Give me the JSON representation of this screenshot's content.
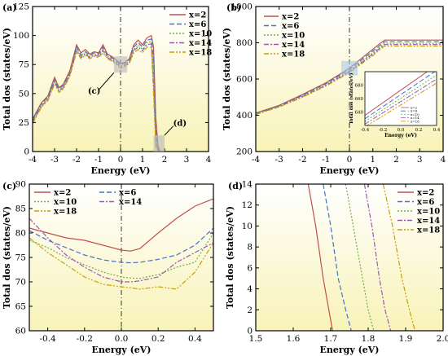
{
  "figure": {
    "legend_labels": [
      "x=2",
      "x=6",
      "x=10",
      "x=14",
      "x=18"
    ],
    "colors": [
      "#c0504d",
      "#4472c4",
      "#70ad47",
      "#9b59b6",
      "#c8a000"
    ]
  },
  "chart_data": [
    {
      "type": "line",
      "panel_label": "(a)",
      "xlabel": "Energy (eV)",
      "ylabel": "Total dos (states/eV)",
      "xlim": [
        -4,
        4
      ],
      "ylim": [
        0,
        125
      ],
      "xticks": [
        -4,
        -3,
        -2,
        -1,
        0,
        1,
        2,
        3,
        4
      ],
      "yticks": [
        0,
        25,
        50,
        75,
        100,
        125
      ],
      "legend_position": "top-right",
      "annotations": [
        "(c)",
        "(d)"
      ],
      "x": [
        -4,
        -3.6,
        -3.3,
        -3.0,
        -2.8,
        -2.6,
        -2.3,
        -2.0,
        -1.8,
        -1.6,
        -1.4,
        -1.2,
        -1.0,
        -0.8,
        -0.6,
        -0.4,
        -0.2,
        0,
        0.2,
        0.4,
        0.6,
        0.8,
        1.0,
        1.2,
        1.4,
        1.5,
        1.6,
        1.7,
        1.8
      ],
      "series": [
        {
          "name": "x=2",
          "values": [
            28,
            42,
            48,
            64,
            55,
            58,
            70,
            92,
            85,
            88,
            84,
            86,
            85,
            92,
            84,
            82,
            79,
            76,
            77,
            80,
            92,
            96,
            92,
            98,
            100,
            90,
            30,
            5,
            0
          ]
        },
        {
          "name": "x=6",
          "values": [
            27,
            41,
            47,
            62,
            54,
            57,
            68,
            90,
            83,
            86,
            83,
            85,
            84,
            90,
            83,
            81,
            78,
            75,
            76,
            79,
            90,
            94,
            90,
            96,
            97,
            80,
            20,
            2,
            0
          ]
        },
        {
          "name": "x=10",
          "values": [
            26,
            40,
            46,
            61,
            53,
            56,
            67,
            88,
            82,
            85,
            82,
            84,
            83,
            88,
            82,
            80,
            77,
            74,
            75,
            78,
            88,
            92,
            88,
            94,
            95,
            70,
            12,
            1,
            0
          ]
        },
        {
          "name": "x=14",
          "values": [
            25,
            39,
            45,
            60,
            52,
            55,
            66,
            87,
            81,
            84,
            81,
            83,
            82,
            87,
            81,
            79,
            76,
            73,
            74,
            77,
            87,
            90,
            87,
            92,
            93,
            60,
            8,
            1,
            0
          ]
        },
        {
          "name": "x=18",
          "values": [
            24,
            38,
            44,
            58,
            51,
            54,
            65,
            86,
            80,
            83,
            80,
            82,
            81,
            85,
            80,
            78,
            75,
            72,
            73,
            76,
            85,
            88,
            85,
            90,
            90,
            50,
            5,
            0,
            0
          ]
        }
      ]
    },
    {
      "type": "line",
      "panel_label": "(b)",
      "xlabel": "Energy (eV)",
      "ylabel": "Total dos (states/eV)",
      "xlim": [
        -4,
        4
      ],
      "ylim": [
        200,
        1000
      ],
      "xticks": [
        -4,
        -3,
        -2,
        -1,
        0,
        1,
        2,
        3,
        4
      ],
      "yticks": [
        200,
        400,
        600,
        800,
        1000
      ],
      "legend_position": "top-left",
      "x": [
        -4,
        -3,
        -2,
        -1,
        0,
        1,
        1.5,
        2,
        3,
        4
      ],
      "series": [
        {
          "name": "x=2",
          "values": [
            412,
            455,
            515,
            580,
            660,
            765,
            815,
            815,
            815,
            815
          ]
        },
        {
          "name": "x=6",
          "values": [
            410,
            452,
            510,
            575,
            652,
            755,
            806,
            806,
            806,
            806
          ]
        },
        {
          "name": "x=10",
          "values": [
            408,
            450,
            506,
            570,
            645,
            745,
            797,
            797,
            797,
            797
          ]
        },
        {
          "name": "x=14",
          "values": [
            406,
            448,
            503,
            566,
            640,
            738,
            790,
            790,
            790,
            790
          ]
        },
        {
          "name": "x=18",
          "values": [
            404,
            446,
            500,
            562,
            635,
            730,
            782,
            782,
            782,
            782
          ]
        }
      ],
      "inset": {
        "xlabel": "Energy (eV)",
        "ylabel": "Total dos (states/eV)",
        "xlim": [
          -0.4,
          0.4
        ],
        "ylim": [
          620,
          700
        ],
        "xticks": [
          -0.4,
          -0.2,
          0.0,
          0.2,
          0.4
        ],
        "yticks": [
          640,
          660,
          680
        ],
        "x": [
          -0.4,
          0.4
        ],
        "series": [
          {
            "name": "x=2",
            "values": [
              635,
              710
            ]
          },
          {
            "name": "x=6",
            "values": [
              630,
              702
            ]
          },
          {
            "name": "x=10",
            "values": [
              626,
              695
            ]
          },
          {
            "name": "x=14",
            "values": [
              622,
              689
            ]
          },
          {
            "name": "x=18",
            "values": [
              618,
              683
            ]
          }
        ]
      }
    },
    {
      "type": "line",
      "panel_label": "(c)",
      "xlabel": "Energy (eV)",
      "ylabel": "Total dos (states/eV)",
      "xlim": [
        -0.5,
        0.5
      ],
      "ylim": [
        60,
        90
      ],
      "xticks": [
        -0.4,
        -0.2,
        0.0,
        0.2,
        0.4
      ],
      "yticks": [
        60,
        65,
        70,
        75,
        80,
        85,
        90
      ],
      "legend_position": "top",
      "x": [
        -0.5,
        -0.4,
        -0.3,
        -0.2,
        -0.1,
        0.0,
        0.05,
        0.1,
        0.2,
        0.3,
        0.4,
        0.5
      ],
      "series": [
        {
          "name": "x=2",
          "values": [
            81,
            80,
            79,
            78.5,
            77.5,
            76.5,
            76.3,
            76.8,
            80,
            83,
            85.5,
            87
          ]
        },
        {
          "name": "x=6",
          "values": [
            80.5,
            78.5,
            77,
            75.5,
            74.5,
            74,
            73.9,
            74,
            74.6,
            75.5,
            77.5,
            81
          ]
        },
        {
          "name": "x=10",
          "values": [
            78.5,
            77,
            75,
            73.5,
            72,
            71,
            70.8,
            70.7,
            71.5,
            73,
            74,
            80
          ]
        },
        {
          "name": "x=14",
          "values": [
            83,
            79,
            75.5,
            73,
            71,
            70,
            70,
            70.2,
            71,
            74,
            76,
            78
          ]
        },
        {
          "name": "x=18",
          "values": [
            79,
            76,
            73.5,
            71,
            69.5,
            69,
            68.8,
            68.5,
            69,
            68.5,
            72,
            78
          ]
        }
      ]
    },
    {
      "type": "line",
      "panel_label": "(d)",
      "xlabel": "Energy (eV)",
      "ylabel": "Total dos (states/eV)",
      "xlim": [
        1.5,
        2.0
      ],
      "ylim": [
        0,
        14
      ],
      "xticks": [
        1.5,
        1.6,
        1.7,
        1.8,
        1.9,
        2.0
      ],
      "yticks": [
        0,
        2,
        4,
        6,
        8,
        10,
        12,
        14
      ],
      "legend_position": "top-right",
      "series": [
        {
          "name": "x=2",
          "x": [
            1.64,
            1.66,
            1.68,
            1.695,
            1.705
          ],
          "values": [
            14,
            10,
            5,
            2,
            0
          ]
        },
        {
          "name": "x=6",
          "x": [
            1.68,
            1.7,
            1.72,
            1.74,
            1.755
          ],
          "values": [
            14,
            10,
            5,
            2,
            0
          ]
        },
        {
          "name": "x=10",
          "x": [
            1.74,
            1.76,
            1.785,
            1.8,
            1.815
          ],
          "values": [
            14,
            10,
            5,
            2,
            0
          ]
        },
        {
          "name": "x=14",
          "x": [
            1.79,
            1.81,
            1.83,
            1.845,
            1.86
          ],
          "values": [
            14,
            10,
            5,
            2,
            0
          ]
        },
        {
          "name": "x=18",
          "x": [
            1.84,
            1.865,
            1.89,
            1.91,
            1.925
          ],
          "values": [
            14,
            10,
            5,
            2,
            0
          ]
        }
      ]
    }
  ]
}
